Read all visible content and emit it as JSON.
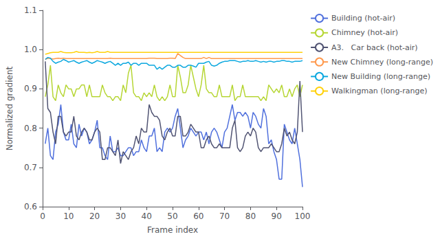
{
  "chart_data": {
    "type": "line",
    "xlabel": "Frame index",
    "ylabel": "Normalized gradient",
    "xlim": [
      0,
      100
    ],
    "ylim": [
      0.6,
      1.1
    ],
    "xticks": [
      0,
      10,
      20,
      30,
      40,
      50,
      60,
      70,
      80,
      90,
      100
    ],
    "yticks": [
      0.6,
      0.7,
      0.8,
      0.9,
      {
        "value": 1.0,
        "label": "1.0"
      },
      1.1
    ],
    "grid": false,
    "legend": "upper right",
    "x": [
      1,
      2,
      3,
      4,
      5,
      6,
      7,
      8,
      9,
      10,
      11,
      12,
      13,
      14,
      15,
      16,
      17,
      18,
      19,
      20,
      21,
      22,
      23,
      24,
      25,
      26,
      27,
      28,
      29,
      30,
      31,
      32,
      33,
      34,
      35,
      36,
      37,
      38,
      39,
      40,
      41,
      42,
      43,
      44,
      45,
      46,
      47,
      48,
      49,
      50,
      51,
      52,
      53,
      54,
      55,
      56,
      57,
      58,
      59,
      60,
      61,
      62,
      63,
      64,
      65,
      66,
      67,
      68,
      69,
      70,
      71,
      72,
      73,
      74,
      75,
      76,
      77,
      78,
      79,
      80,
      81,
      82,
      83,
      84,
      85,
      86,
      87,
      88,
      89,
      90,
      91,
      92,
      93,
      94,
      95,
      96,
      97,
      98,
      99,
      100
    ],
    "series": [
      {
        "name": "Building (hot-air)",
        "values": [
          0.76,
          0.8,
          0.73,
          0.72,
          0.79,
          0.81,
          0.86,
          0.79,
          0.77,
          0.77,
          0.81,
          0.76,
          0.75,
          0.81,
          0.78,
          0.8,
          0.79,
          0.76,
          0.77,
          0.79,
          0.82,
          0.75,
          0.75,
          0.73,
          0.72,
          0.78,
          0.74,
          0.74,
          0.75,
          0.73,
          0.73,
          0.74,
          0.75,
          0.75,
          0.73,
          0.74,
          0.74,
          0.77,
          0.75,
          0.74,
          0.78,
          0.78,
          0.8,
          0.74,
          0.75,
          0.74,
          0.79,
          0.8,
          0.79,
          0.8,
          0.83,
          0.85,
          0.8,
          0.75,
          0.77,
          0.78,
          0.8,
          0.79,
          0.78,
          0.79,
          0.79,
          0.77,
          0.79,
          0.76,
          0.79,
          0.8,
          0.79,
          0.77,
          0.75,
          0.79,
          0.8,
          0.83,
          0.86,
          0.82,
          0.84,
          0.84,
          0.83,
          0.84,
          0.83,
          0.8,
          0.84,
          0.83,
          0.81,
          0.8,
          0.85,
          0.83,
          0.76,
          0.77,
          0.74,
          0.72,
          0.67,
          0.67,
          0.81,
          0.79,
          0.77,
          0.76,
          0.8,
          0.76,
          0.72,
          0.65
        ]
      },
      {
        "name": "Chimney (hot-air)",
        "values": [
          0.88,
          0.91,
          0.96,
          0.88,
          0.87,
          0.91,
          0.89,
          0.88,
          0.91,
          0.9,
          0.9,
          0.88,
          0.9,
          0.9,
          0.91,
          0.91,
          0.88,
          0.91,
          0.88,
          0.88,
          0.88,
          0.88,
          0.91,
          0.89,
          0.88,
          0.88,
          0.87,
          0.88,
          0.88,
          0.87,
          0.91,
          0.89,
          0.94,
          0.96,
          0.89,
          0.88,
          0.88,
          0.87,
          0.89,
          0.88,
          0.89,
          0.88,
          0.91,
          0.88,
          0.87,
          0.88,
          0.87,
          0.88,
          0.91,
          0.88,
          0.88,
          0.96,
          0.93,
          0.89,
          0.89,
          0.91,
          0.96,
          0.93,
          0.9,
          0.88,
          0.91,
          0.96,
          0.9,
          0.89,
          0.89,
          0.88,
          0.88,
          0.91,
          0.88,
          0.88,
          0.88,
          0.88,
          0.91,
          0.87,
          0.88,
          0.88,
          0.91,
          0.88,
          0.88,
          0.88,
          0.88,
          0.88,
          0.88,
          0.87,
          0.88,
          0.87,
          0.91,
          0.9,
          0.89,
          0.9,
          0.89,
          0.91,
          0.88,
          0.88,
          0.9,
          0.88,
          0.9,
          0.91,
          0.88,
          0.91
        ]
      },
      {
        "name": "A3.   Car back (hot-air)",
        "values": [
          0.97,
          0.85,
          0.84,
          0.79,
          0.76,
          0.83,
          0.83,
          0.79,
          0.78,
          0.79,
          0.79,
          0.83,
          0.78,
          0.77,
          0.79,
          0.8,
          0.79,
          0.77,
          0.77,
          0.79,
          0.8,
          0.79,
          0.72,
          0.72,
          0.75,
          0.75,
          0.74,
          0.73,
          0.77,
          0.71,
          0.74,
          0.73,
          0.72,
          0.74,
          0.75,
          0.78,
          0.76,
          0.8,
          0.79,
          0.79,
          0.86,
          0.84,
          0.83,
          0.83,
          0.82,
          0.78,
          0.77,
          0.79,
          0.8,
          0.78,
          0.78,
          0.83,
          0.83,
          0.78,
          0.78,
          0.79,
          0.81,
          0.8,
          0.79,
          0.79,
          0.75,
          0.75,
          0.77,
          0.78,
          0.76,
          0.75,
          0.75,
          0.76,
          0.75,
          0.75,
          0.75,
          0.75,
          0.8,
          0.82,
          0.75,
          0.74,
          0.75,
          0.78,
          0.79,
          0.78,
          0.8,
          0.79,
          0.75,
          0.74,
          0.75,
          0.75,
          0.75,
          0.76,
          0.75,
          0.74,
          0.74,
          0.76,
          0.8,
          0.78,
          0.79,
          0.77,
          0.76,
          0.79,
          0.92,
          0.79
        ]
      },
      {
        "name": "New Chimney (long-range)",
        "values": [
          0.975,
          0.978,
          0.977,
          0.976,
          0.977,
          0.978,
          0.977,
          0.978,
          0.977,
          0.977,
          0.977,
          0.977,
          0.977,
          0.977,
          0.977,
          0.977,
          0.977,
          0.977,
          0.977,
          0.977,
          0.977,
          0.977,
          0.977,
          0.977,
          0.977,
          0.978,
          0.977,
          0.977,
          0.977,
          0.977,
          0.977,
          0.977,
          0.977,
          0.977,
          0.977,
          0.977,
          0.977,
          0.977,
          0.977,
          0.977,
          0.978,
          0.978,
          0.978,
          0.977,
          0.977,
          0.977,
          0.977,
          0.977,
          0.978,
          0.978,
          0.977,
          0.99,
          0.985,
          0.98,
          0.977,
          0.977,
          0.977,
          0.977,
          0.977,
          0.977,
          0.977,
          0.98,
          0.977,
          0.98,
          0.977,
          0.977,
          0.977,
          0.977,
          0.977,
          0.977,
          0.977,
          0.977,
          0.977,
          0.977,
          0.977,
          0.977,
          0.977,
          0.977,
          0.977,
          0.977,
          0.977,
          0.977,
          0.977,
          0.977,
          0.977,
          0.977,
          0.977,
          0.977,
          0.977,
          0.977,
          0.977,
          0.977,
          0.977,
          0.977,
          0.977,
          0.977,
          0.977,
          0.977,
          0.977,
          0.977
        ]
      },
      {
        "name": "New Building (long-range)",
        "values": [
          0.975,
          0.98,
          0.978,
          0.97,
          0.965,
          0.968,
          0.97,
          0.975,
          0.972,
          0.968,
          0.97,
          0.972,
          0.968,
          0.965,
          0.968,
          0.97,
          0.972,
          0.968,
          0.965,
          0.968,
          0.972,
          0.97,
          0.968,
          0.965,
          0.968,
          0.97,
          0.965,
          0.96,
          0.965,
          0.96,
          0.965,
          0.965,
          0.968,
          0.96,
          0.965,
          0.965,
          0.96,
          0.965,
          0.965,
          0.965,
          0.96,
          0.96,
          0.96,
          0.95,
          0.955,
          0.95,
          0.955,
          0.96,
          0.96,
          0.955,
          0.955,
          0.96,
          0.96,
          0.955,
          0.955,
          0.96,
          0.96,
          0.958,
          0.955,
          0.965,
          0.965,
          0.965,
          0.968,
          0.97,
          0.96,
          0.958,
          0.96,
          0.965,
          0.968,
          0.97,
          0.97,
          0.972,
          0.972,
          0.972,
          0.97,
          0.968,
          0.97,
          0.97,
          0.972,
          0.97,
          0.97,
          0.972,
          0.97,
          0.968,
          0.97,
          0.968,
          0.97,
          0.97,
          0.968,
          0.97,
          0.97,
          0.972,
          0.972,
          0.97,
          0.97,
          0.968,
          0.97,
          0.97,
          0.97,
          0.972
        ]
      },
      {
        "name": "Walkingman (long-range)",
        "values": [
          0.988,
          0.99,
          0.992,
          0.993,
          0.993,
          0.993,
          0.995,
          0.993,
          0.992,
          0.992,
          0.992,
          0.993,
          0.995,
          0.993,
          0.993,
          0.993,
          0.992,
          0.993,
          0.992,
          0.993,
          0.995,
          0.993,
          0.993,
          0.993,
          0.995,
          0.993,
          0.993,
          0.993,
          0.993,
          0.993,
          0.993,
          0.993,
          0.993,
          0.993,
          0.993,
          0.993,
          0.993,
          0.993,
          0.993,
          0.993,
          0.993,
          0.993,
          0.993,
          0.993,
          0.993,
          0.993,
          0.993,
          0.993,
          0.993,
          0.993,
          0.993,
          0.993,
          0.993,
          0.993,
          0.993,
          0.993,
          0.993,
          0.993,
          0.993,
          0.993,
          0.993,
          0.993,
          0.993,
          0.993,
          0.993,
          0.993,
          0.993,
          0.993,
          0.993,
          0.993,
          0.993,
          0.993,
          0.993,
          0.993,
          0.993,
          0.993,
          0.993,
          0.993,
          0.993,
          0.993,
          0.993,
          0.993,
          0.993,
          0.993,
          0.993,
          0.993,
          0.993,
          0.993,
          0.993,
          0.993,
          0.993,
          0.993,
          0.993,
          0.993,
          0.993,
          0.993,
          0.993,
          0.993,
          0.993,
          0.993
        ]
      }
    ]
  }
}
